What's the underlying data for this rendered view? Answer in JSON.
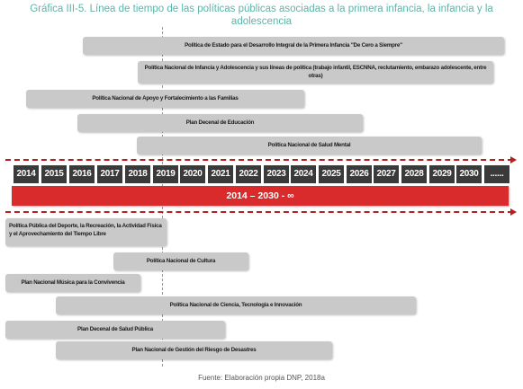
{
  "title": "Gráfica III-5. Línea de tiempo de las políticas públicas asociadas a la primera infancia, la infancia y la adolescencia",
  "years": [
    "2014",
    "2015",
    "2016",
    "2017",
    "2018",
    "2019",
    "2020",
    "2021",
    "2022",
    "2023",
    "2024",
    "2025",
    "2026",
    "2027",
    "2028",
    "2029",
    "2030",
    "......"
  ],
  "period": "2014 – 2030 - ∞",
  "policies_top": [
    "Política de Estado para el Desarrollo Integral de la Primera Infancia \"De Cero a Siempre\"",
    "Política Nacional de Infancia y Adolescencia y sus líneas de política (trabajo infantil, ESCNNA, reclutamiento, embarazo adolescente, entre otras)",
    "Política Nacional de Apoyo y Fortalecimiento a las Familias",
    "Plan Decenal de Educación",
    "Política Nacional de Salud Mental"
  ],
  "policies_bottom": [
    "Política Pública del Deporte, la Recreación, la Actividad Física y el Aprovechamiento del Tiempo Libre",
    "Política Nacional de Cultura",
    "Plan Nacional Música para la Convivencia",
    "Política Nacional de Ciencia, Tecnología e Innovación",
    "Plan Decenal de Salud Pública",
    "Plan Nacional de Gestión del Riesgo de Desastres"
  ],
  "source": "Fuente: Elaboración propia DNP, 2018a",
  "colors": {
    "title": "#5fb3a8",
    "year_box": "#3a3a3a",
    "period_bar": "#d92b2b",
    "policy_bar": "#c9c9c9",
    "arrow": "#b52020"
  }
}
